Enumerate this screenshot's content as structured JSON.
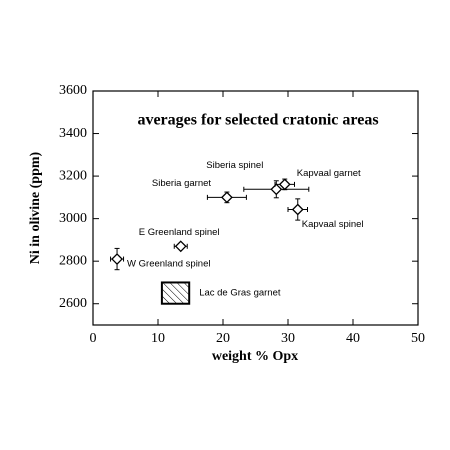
{
  "chart_data": {
    "type": "scatter",
    "title": "averages for selected cratonic areas",
    "x_label": "weight % Opx",
    "y_label": "Ni in olivine (ppm)",
    "xlim": [
      0,
      50
    ],
    "xticks": [
      0,
      10,
      20,
      30,
      40,
      50
    ],
    "ylim": [
      2500,
      3600
    ],
    "yticks": [
      2600,
      2800,
      3000,
      3200,
      3400,
      3600
    ],
    "points": [
      {
        "label": "W Greenland spinel",
        "x": 3.7,
        "y": 2810,
        "xerr": 1,
        "yerr": 50
      },
      {
        "label": "E Greenland spinel",
        "x": 13.5,
        "y": 2870,
        "xerr": 1,
        "yerr": 12
      },
      {
        "label": "Siberia garnet",
        "x": 20.6,
        "y": 3100,
        "xerr": 3,
        "yerr": 25
      },
      {
        "label": "Siberia spinel",
        "x": 28.2,
        "y": 3138,
        "xerr": 5,
        "yerr": 40
      },
      {
        "label": "Kapvaal garnet",
        "x": 29.5,
        "y": 3161,
        "xerr": 1.5,
        "yerr": 25
      },
      {
        "label": "Kapvaal spinel",
        "x": 31.5,
        "y": 3043,
        "xerr": 1.5,
        "yerr": 50
      }
    ],
    "boxes": [
      {
        "label": "Lac de Gras garnet",
        "x": [
          10.6,
          14.8
        ],
        "y": [
          2600,
          2700
        ]
      }
    ]
  }
}
